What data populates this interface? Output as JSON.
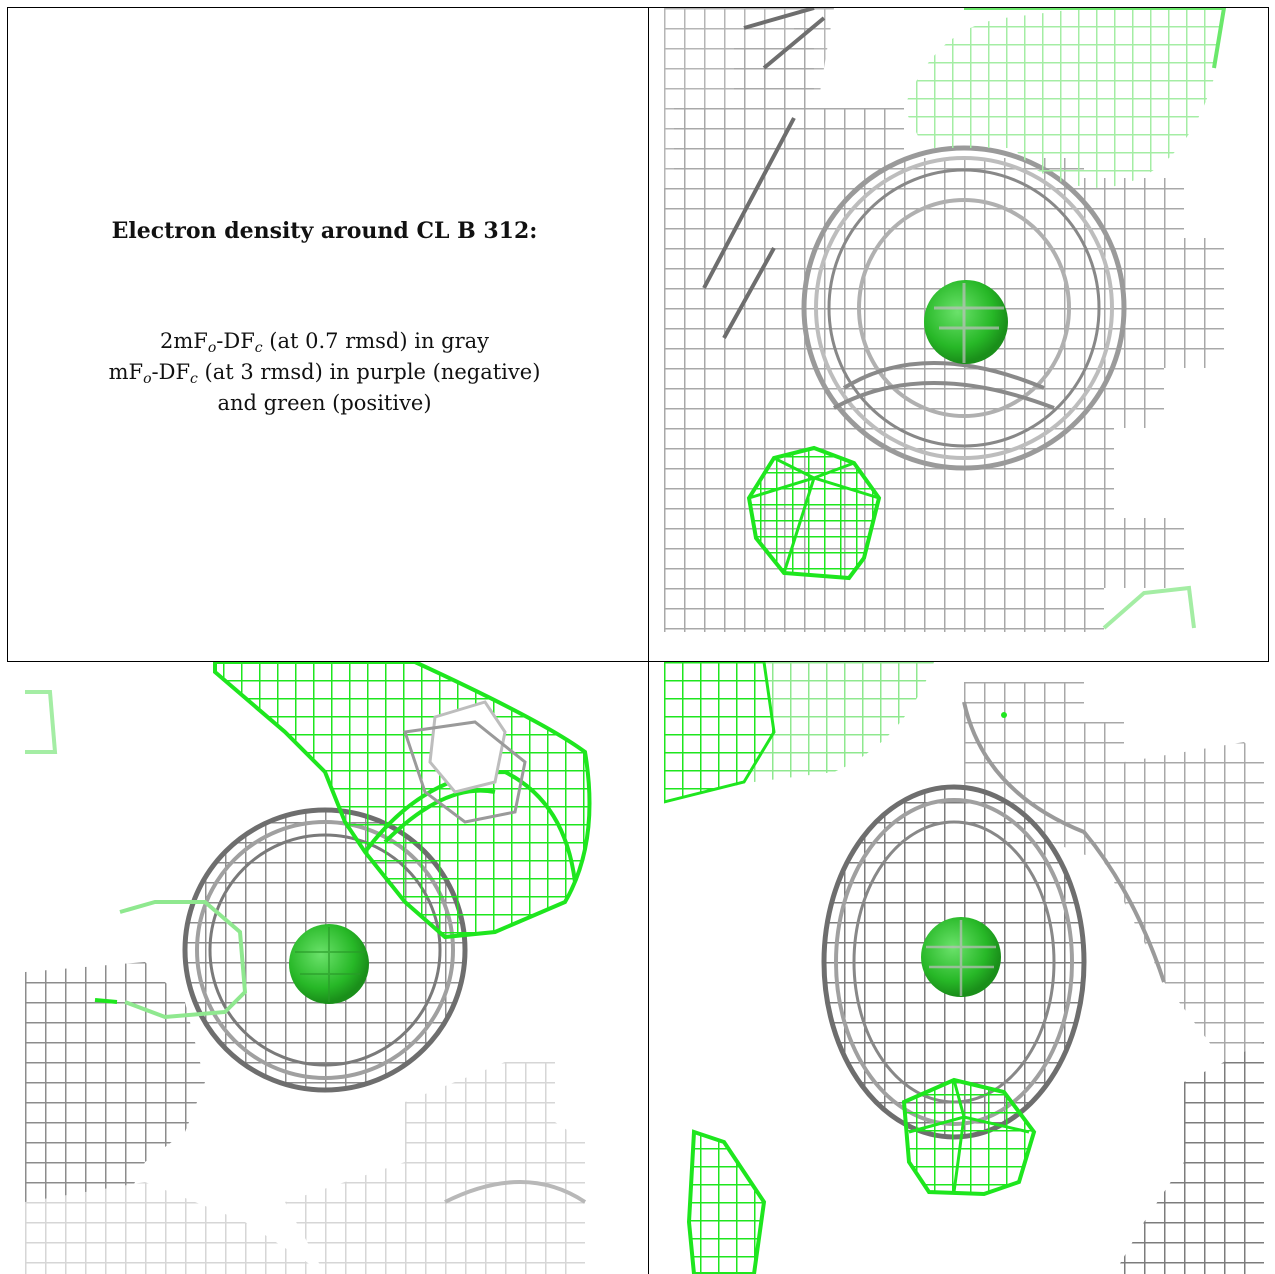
{
  "figure": {
    "title": "Electron density around CL B 312:",
    "legend": {
      "line1": {
        "lead": "2mF",
        "sub1": "o",
        "mid": "-DF",
        "sub2": "c",
        "tail": " (at 0.7 rmsd) in gray"
      },
      "line2": {
        "lead": "mF",
        "sub1": "o",
        "mid": "-DF",
        "sub2": "c",
        "tail": " (at 3 rmsd) in purple (negative)"
      },
      "line3": "and green (positive)"
    }
  },
  "colors": {
    "gray_mesh": "#a6a6a6",
    "gray_mesh_dark": "#6e6e6e",
    "green_mesh": "#1ee61e",
    "green_mesh_light": "#9af09a",
    "atom": "#2fc52f"
  },
  "panels": [
    {
      "name": "view-top-right"
    },
    {
      "name": "view-bottom-left"
    },
    {
      "name": "view-bottom-right"
    }
  ]
}
